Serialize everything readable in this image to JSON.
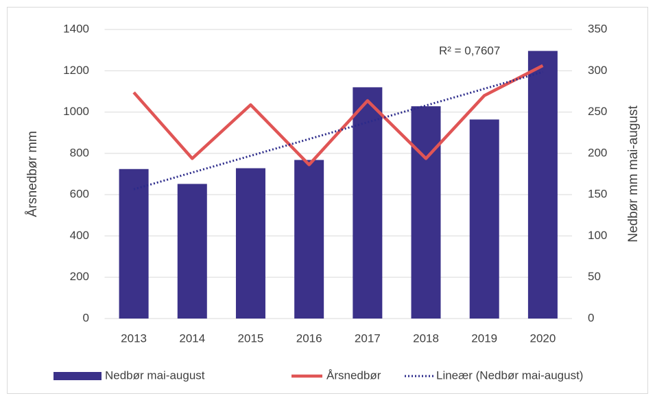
{
  "chart_data": {
    "type": "bar_line",
    "categories": [
      "2013",
      "2014",
      "2015",
      "2016",
      "2017",
      "2018",
      "2019",
      "2020"
    ],
    "ylabel": "Årsnedbør mm",
    "y2label": "Nedbør mm mai-august",
    "ylim": [
      0,
      1400
    ],
    "yticks": [
      0,
      200,
      400,
      600,
      800,
      1000,
      1200,
      1400
    ],
    "y2lim": [
      0,
      350
    ],
    "y2ticks": [
      0,
      50,
      100,
      150,
      200,
      250,
      300,
      350
    ],
    "series": [
      {
        "name": "Nedbør mai-august",
        "type": "bar",
        "axis": "y2",
        "color": "#3b3189",
        "values": [
          181,
          163,
          182,
          192,
          280,
          257,
          241,
          324
        ]
      },
      {
        "name": "Årsnedbør",
        "type": "line",
        "axis": "y",
        "color": "#e05555",
        "values": [
          1095,
          775,
          1035,
          745,
          1055,
          775,
          1080,
          1225
        ]
      }
    ],
    "trendline": {
      "name": "Lineær (Nedbør mai-august)",
      "of_series": 0,
      "color": "#2b2a8a",
      "annotation": "R² = 0,7607"
    }
  }
}
